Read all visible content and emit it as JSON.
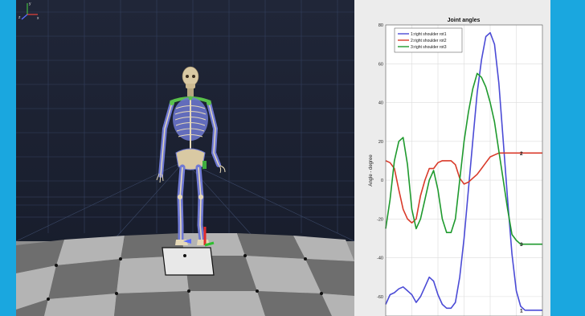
{
  "viewport": {
    "axis_labels": {
      "x": "x",
      "y": "y",
      "z": "z"
    }
  },
  "chart_data": {
    "type": "line",
    "title": "Joint angles",
    "xlabel": "",
    "ylabel": "Angle - degree",
    "ylim": [
      -70,
      80
    ],
    "yticks": [
      80,
      60,
      40,
      20,
      0,
      -20,
      -40,
      -60
    ],
    "grid": true,
    "legend_position": "top-left",
    "series": [
      {
        "name": "1:right shoulder rot1",
        "color": "#4b4bd6",
        "end_label": "1",
        "points": [
          [
            0,
            -64
          ],
          [
            2,
            -59
          ],
          [
            4,
            -58
          ],
          [
            6,
            -56
          ],
          [
            8,
            -55
          ],
          [
            10,
            -57
          ],
          [
            12,
            -59
          ],
          [
            14,
            -63
          ],
          [
            16,
            -60
          ],
          [
            18,
            -55
          ],
          [
            20,
            -50
          ],
          [
            22,
            -52
          ],
          [
            24,
            -59
          ],
          [
            26,
            -64
          ],
          [
            28,
            -66
          ],
          [
            30,
            -66
          ],
          [
            32,
            -63
          ],
          [
            34,
            -50
          ],
          [
            36,
            -30
          ],
          [
            38,
            -5
          ],
          [
            40,
            20
          ],
          [
            42,
            45
          ],
          [
            44,
            62
          ],
          [
            46,
            74
          ],
          [
            48,
            76
          ],
          [
            50,
            70
          ],
          [
            52,
            50
          ],
          [
            54,
            20
          ],
          [
            56,
            -10
          ],
          [
            58,
            -38
          ],
          [
            60,
            -57
          ],
          [
            62,
            -65
          ],
          [
            64,
            -67
          ],
          [
            66,
            -67
          ],
          [
            68,
            -67
          ],
          [
            70,
            -67
          ],
          [
            72,
            -67
          ]
        ]
      },
      {
        "name": "2:right shoulder rot2",
        "color": "#d93a2a",
        "end_label": "2",
        "points": [
          [
            0,
            10
          ],
          [
            2,
            9
          ],
          [
            4,
            6
          ],
          [
            6,
            -5
          ],
          [
            8,
            -15
          ],
          [
            10,
            -20
          ],
          [
            12,
            -22
          ],
          [
            14,
            -20
          ],
          [
            16,
            -8
          ],
          [
            18,
            0
          ],
          [
            20,
            6
          ],
          [
            22,
            6
          ],
          [
            24,
            9
          ],
          [
            26,
            10
          ],
          [
            28,
            10
          ],
          [
            30,
            10
          ],
          [
            32,
            8
          ],
          [
            34,
            1
          ],
          [
            36,
            -2
          ],
          [
            38,
            -1
          ],
          [
            40,
            1
          ],
          [
            42,
            3
          ],
          [
            44,
            6
          ],
          [
            46,
            9
          ],
          [
            48,
            12
          ],
          [
            50,
            13
          ],
          [
            52,
            14
          ],
          [
            54,
            14
          ],
          [
            56,
            14
          ],
          [
            58,
            14
          ],
          [
            60,
            14
          ],
          [
            62,
            14
          ],
          [
            64,
            14
          ],
          [
            66,
            14
          ],
          [
            68,
            14
          ],
          [
            70,
            14
          ],
          [
            72,
            14
          ]
        ]
      },
      {
        "name": "3:right shoulder rot3",
        "color": "#1f9a2e",
        "end_label": "3",
        "points": [
          [
            0,
            -25
          ],
          [
            2,
            -10
          ],
          [
            4,
            10
          ],
          [
            6,
            20
          ],
          [
            8,
            22
          ],
          [
            10,
            8
          ],
          [
            12,
            -15
          ],
          [
            14,
            -25
          ],
          [
            16,
            -20
          ],
          [
            18,
            -10
          ],
          [
            20,
            0
          ],
          [
            22,
            5
          ],
          [
            24,
            -5
          ],
          [
            26,
            -20
          ],
          [
            28,
            -27
          ],
          [
            30,
            -27
          ],
          [
            32,
            -20
          ],
          [
            34,
            0
          ],
          [
            36,
            20
          ],
          [
            38,
            35
          ],
          [
            40,
            47
          ],
          [
            42,
            55
          ],
          [
            44,
            53
          ],
          [
            46,
            48
          ],
          [
            48,
            40
          ],
          [
            50,
            30
          ],
          [
            52,
            15
          ],
          [
            54,
            0
          ],
          [
            56,
            -15
          ],
          [
            58,
            -28
          ],
          [
            60,
            -31
          ],
          [
            62,
            -33
          ],
          [
            64,
            -33
          ],
          [
            66,
            -33
          ],
          [
            68,
            -33
          ],
          [
            70,
            -33
          ],
          [
            72,
            -33
          ]
        ]
      }
    ]
  }
}
